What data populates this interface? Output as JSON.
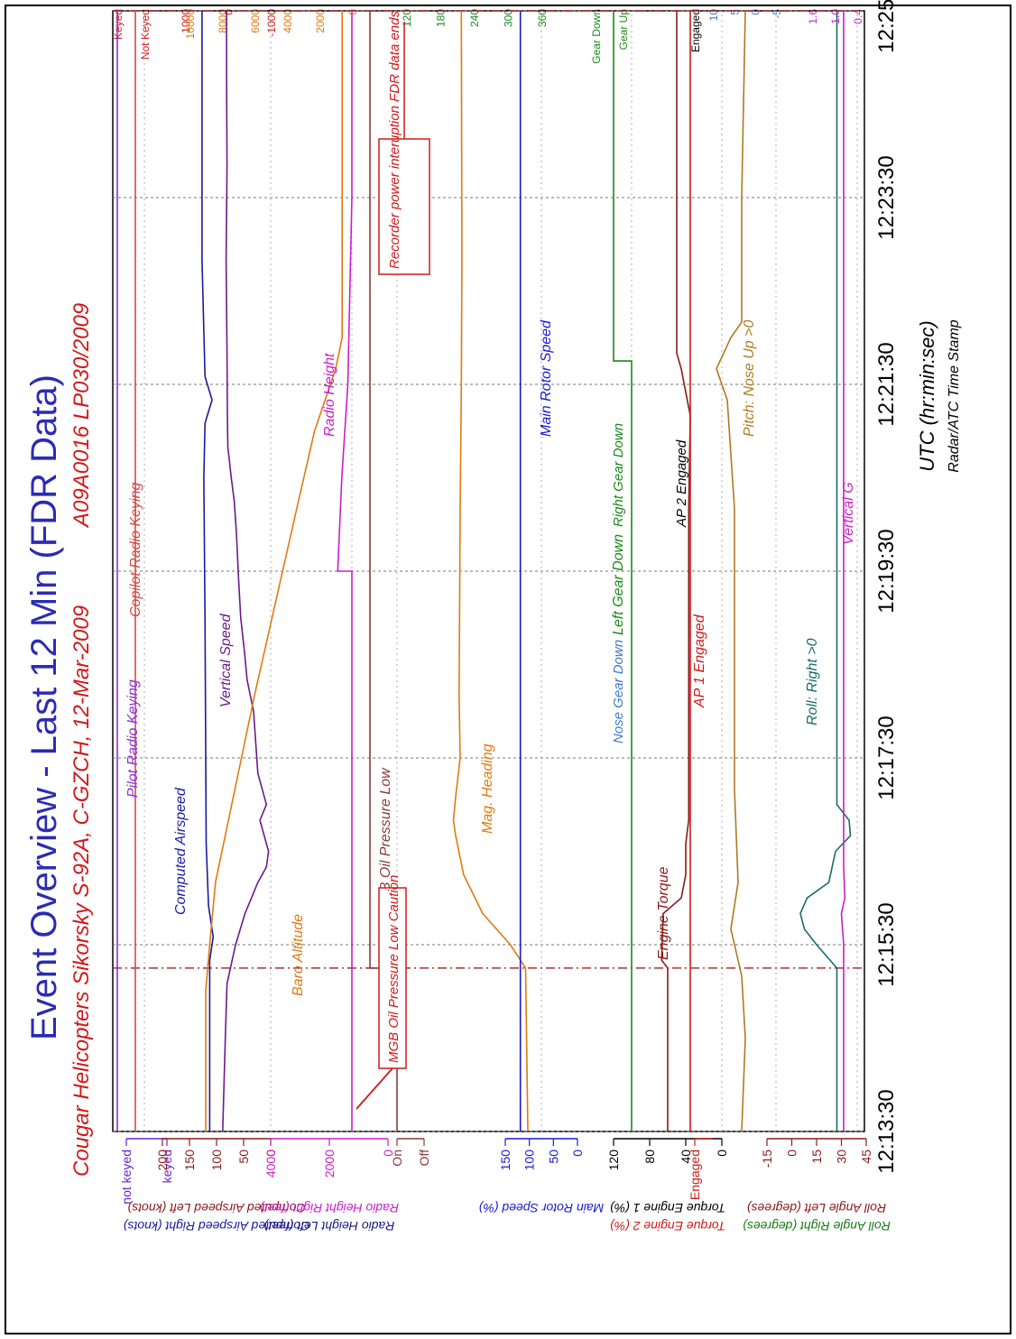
{
  "chart_data": {
    "type": "line",
    "title": "Event Overview - Last 12 Min (FDR Data)",
    "subtitle": "Cougar Helicopters Sikorsky S-92A, C-GZCH, 12-Mar-2009",
    "report_id": "A09A0016 LP030/2009",
    "xlabel": "UTC (hr:min:sec)",
    "xlabel_sub": "Radar/ATC Time Stamp",
    "x_ticks": [
      "12:13:30",
      "12:15:30",
      "12:17:30",
      "12:19:30",
      "12:21:30",
      "12:23:30",
      "12:25:30"
    ],
    "x_range_sec": [
      0,
      720
    ],
    "grid": true,
    "left_axes": [
      {
        "key": "keying",
        "ticks": [
          "not keyed",
          "keyed"
        ],
        "label_a": "",
        "label_b": "",
        "color_a": "#6a1fd0",
        "color_b": "#6a1fd0"
      },
      {
        "key": "airspeed",
        "ticks": [
          "200",
          "150",
          "100",
          "50",
          "0"
        ],
        "label_a": "Computed Airspeed Left (knots)",
        "label_b": "Computed Airspeed Right (knots)",
        "color_a": "#8b1a1a",
        "color_b": "#1a1aa0"
      },
      {
        "key": "radio",
        "ticks": [
          "4000",
          "2000",
          "0"
        ],
        "label_a": "Radio Height Right (feet)",
        "label_b": "Radio Height Left (feet)",
        "color_a": "#c81fc8",
        "color_b": "#1a1a80"
      },
      {
        "key": "oilp",
        "ticks": [
          "On",
          "Off"
        ],
        "label_a": "",
        "label_b": "",
        "color_a": "#8b3a3a",
        "color_b": "#8b3a3a"
      },
      {
        "key": "nr",
        "ticks": [
          "150",
          "100",
          "50",
          "0"
        ],
        "label_a": "Main Rotor Speed (%)",
        "label_b": "",
        "color_a": "#1a1ad0",
        "color_b": "#1a1ad0"
      },
      {
        "key": "torque",
        "ticks": [
          "120",
          "80",
          "40",
          "0"
        ],
        "label_a": "Torque Engine 1 (%)",
        "label_b": "Torque Engine 2 (%)",
        "color_a": "#000000",
        "color_b": "#d01a1a"
      },
      {
        "key": "ap1",
        "ticks": [
          "Engaged"
        ],
        "label_a": "",
        "label_b": "",
        "color_a": "#d01a1a",
        "color_b": "#d01a1a"
      },
      {
        "key": "roll",
        "ticks": [
          "-15",
          "0",
          "15",
          "30",
          "45"
        ],
        "label_a": "Roll Angle Left (degrees)",
        "label_b": "Roll Angle Right (degrees)",
        "color_a": "#8b1a1a",
        "color_b": "#1a7a1a"
      }
    ],
    "right_axes": [
      {
        "key": "keyed",
        "ticks": [
          "Keyed",
          "Not Keyed"
        ],
        "label_a": "",
        "label_b": "",
        "color_a": "#d01a1a",
        "color_b": "#d01a1a"
      },
      {
        "key": "vs",
        "ticks": [
          "1000",
          "0",
          "-1000"
        ],
        "label_a": "Vertical Speed Left (ft/min)",
        "label_b": "Vertical Speed Right (fpm)",
        "color_a": "#d01a1a",
        "color_b": "#1a1a80"
      },
      {
        "key": "baro",
        "ticks": [
          "10000",
          "8000",
          "6000",
          "4000",
          "2000",
          "0"
        ],
        "label_a": "Barometric Altitude Left (feet)",
        "label_b": "Barometric Altitude Right (feet)",
        "color_a": "#e07a10",
        "color_b": "#3a7ad0"
      },
      {
        "key": "hdg",
        "ticks": [
          "120",
          "180",
          "240",
          "300",
          "360"
        ],
        "label_a": "Magnetic Heading Left (degrees)",
        "label_b": "Magnetic Heading Right (degrees)",
        "color_a": "#1a8a1a",
        "color_b": "#e07a10"
      },
      {
        "key": "gear",
        "ticks": [
          "Gear Down",
          "Gear Up"
        ],
        "label_a": "",
        "label_b": "",
        "color_a": "#1a8a1a",
        "color_b": "#1a8a1a"
      },
      {
        "key": "ap2",
        "ticks": [
          "Engaged"
        ],
        "label_a": "",
        "label_b": "",
        "color_a": "#000000",
        "color_b": "#000000"
      },
      {
        "key": "pitch",
        "ticks": [
          "10",
          "5",
          "0",
          "-5"
        ],
        "label_a": "Pitch Angle Left (degrees)",
        "label_b": "Pitch Angle Right (degrees)",
        "color_a": "#3a7ad0",
        "color_b": "#e07a10"
      },
      {
        "key": "vg",
        "ticks": [
          "1.6",
          "1.0",
          "0.4"
        ],
        "label_a": "Vertical Acceleration (g)",
        "label_b": "",
        "color_a": "#c81fc8",
        "color_b": "#c81fc8"
      }
    ],
    "series": [
      {
        "name": "Pilot Radio Keying",
        "color": "#8b2fd8",
        "band": "keying",
        "points": [
          [
            0,
            0
          ],
          [
            720,
            0
          ]
        ]
      },
      {
        "name": "Copilot Radio Keying",
        "color": "#d04a4a",
        "band": "keyed",
        "points": [
          [
            0,
            0
          ],
          [
            720,
            0
          ]
        ]
      },
      {
        "name": "Computed Airspeed",
        "color": "#1a1aa0",
        "band": "airspeed",
        "points": [
          [
            0,
            104
          ],
          [
            110,
            104
          ],
          [
            125,
            98
          ],
          [
            145,
            106
          ],
          [
            185,
            110
          ],
          [
            330,
            112
          ],
          [
            420,
            114
          ],
          [
            455,
            112
          ],
          [
            470,
            100
          ],
          [
            485,
            112
          ],
          [
            560,
            117
          ],
          [
            720,
            117
          ]
        ]
      },
      {
        "name": "Vertical Speed",
        "color": "#6a1a8a",
        "band": "vs",
        "points": [
          [
            0,
            120
          ],
          [
            60,
            60
          ],
          [
            95,
            20
          ],
          [
            120,
            -180
          ],
          [
            140,
            -400
          ],
          [
            160,
            -700
          ],
          [
            170,
            -900
          ],
          [
            180,
            -950
          ],
          [
            200,
            -750
          ],
          [
            210,
            -900
          ],
          [
            230,
            -700
          ],
          [
            250,
            -650
          ],
          [
            270,
            -600
          ],
          [
            290,
            -450
          ],
          [
            310,
            -380
          ],
          [
            330,
            -300
          ],
          [
            355,
            -250
          ],
          [
            385,
            -200
          ],
          [
            405,
            -150
          ],
          [
            420,
            -80
          ],
          [
            440,
            0
          ],
          [
            460,
            10
          ],
          [
            500,
            20
          ],
          [
            560,
            40
          ],
          [
            620,
            20
          ],
          [
            680,
            30
          ],
          [
            720,
            30
          ]
        ]
      },
      {
        "name": "Baro Altitude",
        "color": "#e07a10",
        "band": "baro",
        "points": [
          [
            0,
            9000
          ],
          [
            90,
            9000
          ],
          [
            115,
            8800
          ],
          [
            160,
            8400
          ],
          [
            220,
            7200
          ],
          [
            280,
            6000
          ],
          [
            340,
            4700
          ],
          [
            400,
            3400
          ],
          [
            450,
            2300
          ],
          [
            490,
            1000
          ],
          [
            510,
            600
          ],
          [
            720,
            600
          ]
        ]
      },
      {
        "name": "Radio Height",
        "color": "#c81fc8",
        "band": "radio",
        "points": [
          [
            0,
            0
          ],
          [
            360,
            0
          ],
          [
            360,
            700
          ],
          [
            420,
            500
          ],
          [
            480,
            200
          ],
          [
            600,
            0
          ],
          [
            720,
            0
          ]
        ]
      },
      {
        "name": "MGB Oil Pressure Low",
        "color": "#8b3a3a",
        "band": "oilp",
        "points": [
          [
            0,
            0
          ],
          [
            105,
            0
          ],
          [
            105,
            1
          ],
          [
            720,
            1
          ]
        ]
      },
      {
        "name": "Mag. Heading",
        "color": "#e07a10",
        "band": "hdg",
        "points": [
          [
            0,
            144
          ],
          [
            105,
            148
          ],
          [
            120,
            175
          ],
          [
            140,
            224
          ],
          [
            165,
            258
          ],
          [
            190,
            272
          ],
          [
            200,
            276
          ],
          [
            215,
            272
          ],
          [
            240,
            264
          ],
          [
            280,
            266
          ],
          [
            400,
            264
          ],
          [
            480,
            262
          ],
          [
            560,
            261
          ],
          [
            720,
            262
          ]
        ]
      },
      {
        "name": "Main Rotor Speed",
        "color": "#1a1ad0",
        "band": "nr",
        "points": [
          [
            0,
            100
          ],
          [
            720,
            100
          ]
        ]
      },
      {
        "name": "Left Gear Down",
        "color": "#1a8a1a",
        "band": "gear",
        "points": [
          [
            0,
            0
          ],
          [
            495,
            0
          ],
          [
            495,
            1
          ],
          [
            720,
            1
          ]
        ]
      },
      {
        "name": "Engine Torque",
        "color": "#8b1a1a",
        "band": "torque",
        "points": [
          [
            0,
            72
          ],
          [
            105,
            72
          ],
          [
            110,
            80
          ],
          [
            140,
            78
          ],
          [
            150,
            54
          ],
          [
            165,
            48
          ],
          [
            185,
            48
          ],
          [
            200,
            44
          ],
          [
            400,
            44
          ],
          [
            460,
            42
          ],
          [
            490,
            54
          ],
          [
            500,
            60
          ],
          [
            720,
            60
          ]
        ]
      },
      {
        "name": "AP 1 Engaged",
        "color": "#d01a1a",
        "band": "ap1",
        "points": [
          [
            0,
            1
          ],
          [
            720,
            1
          ]
        ]
      },
      {
        "name": "Pitch: Nose Up >0",
        "color": "#b07a20",
        "band": "pitch",
        "points": [
          [
            0,
            2
          ],
          [
            60,
            1
          ],
          [
            100,
            2
          ],
          [
            130,
            5
          ],
          [
            160,
            3
          ],
          [
            220,
            4
          ],
          [
            300,
            4
          ],
          [
            400,
            4
          ],
          [
            470,
            6
          ],
          [
            490,
            9
          ],
          [
            510,
            5
          ],
          [
            520,
            2
          ],
          [
            600,
            2
          ],
          [
            720,
            1
          ]
        ]
      },
      {
        "name": "Roll: Right >0",
        "color": "#1a6a6a",
        "band": "roll",
        "points": [
          [
            0,
            0
          ],
          [
            105,
            0
          ],
          [
            120,
            15
          ],
          [
            130,
            24
          ],
          [
            140,
            27
          ],
          [
            150,
            22
          ],
          [
            160,
            6
          ],
          [
            180,
            1
          ],
          [
            190,
            -10
          ],
          [
            200,
            -9
          ],
          [
            210,
            0
          ],
          [
            720,
            0
          ]
        ]
      },
      {
        "name": "Vertical G",
        "color": "#c81fc8",
        "band": "vg",
        "points": [
          [
            0,
            1.0
          ],
          [
            120,
            1.0
          ],
          [
            140,
            1.1
          ],
          [
            150,
            0.95
          ],
          [
            170,
            1.0
          ],
          [
            720,
            1.0
          ]
        ]
      }
    ],
    "annotations": [
      "Recorder power interuption FDR data ends",
      "MGB Oil Pressure Low Caution",
      "Nose Gear Down",
      "Right Gear Down",
      "AP 2 Engaged"
    ]
  }
}
